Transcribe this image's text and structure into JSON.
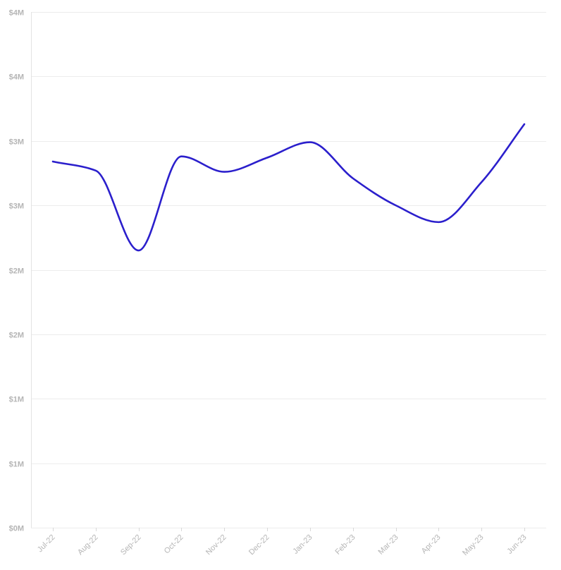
{
  "chart_data": {
    "type": "line",
    "title": "",
    "xlabel": "",
    "ylabel": "",
    "categories": [
      "Jul-22",
      "Aug-22",
      "Sep-22",
      "Oct-22",
      "Nov-22",
      "Dec-22",
      "Jan-23",
      "Feb-23",
      "Mar-23",
      "Apr-23",
      "May-23",
      "Jun-23"
    ],
    "y_tick_values": [
      0,
      500000,
      1000000,
      1500000,
      2000000,
      2500000,
      3000000,
      3500000,
      4000000
    ],
    "y_tick_labels": [
      "$0M",
      "$1M",
      "$1M",
      "$2M",
      "$2M",
      "$3M",
      "$3M",
      "$4M",
      "$4M"
    ],
    "ylim": [
      0,
      4000000
    ],
    "grid": true,
    "legend": "none",
    "series": [
      {
        "color": "#2b1fcc",
        "values": [
          2840000,
          2770000,
          2150000,
          2880000,
          2760000,
          2870000,
          2990000,
          2710000,
          2500000,
          2370000,
          2680000,
          3130000
        ]
      }
    ]
  }
}
